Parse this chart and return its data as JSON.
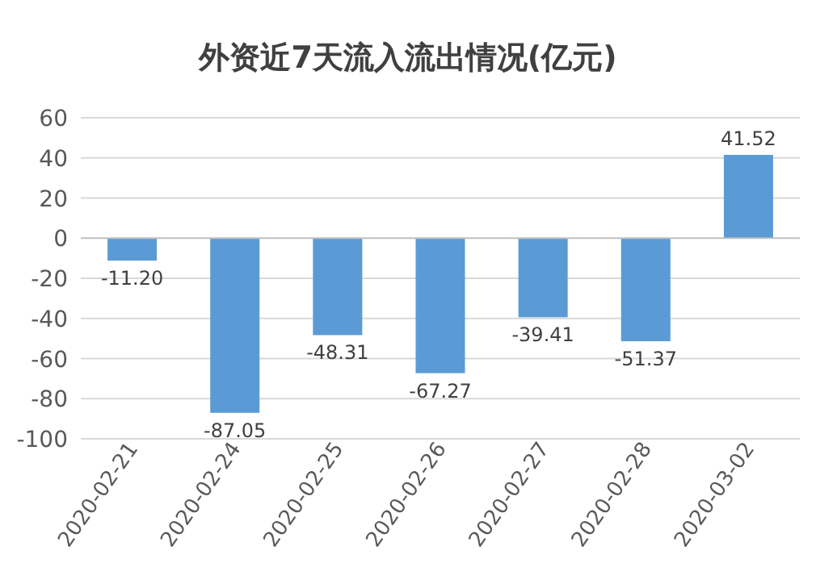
{
  "chart_data": {
    "type": "bar",
    "title": "外资近7天流入流出情况(亿元)",
    "categories": [
      "2020-02-21",
      "2020-02-24",
      "2020-02-25",
      "2020-02-26",
      "2020-02-27",
      "2020-02-28",
      "2020-03-02"
    ],
    "values": [
      -11.2,
      -87.05,
      -48.31,
      -67.27,
      -39.41,
      -51.37,
      41.52
    ],
    "value_labels": [
      "-11.20",
      "-87.05",
      "-48.31",
      "-67.27",
      "-39.41",
      "-51.37",
      "41.52"
    ],
    "color": "#5b9bd5",
    "ylim": [
      -100,
      60
    ],
    "yticks": [
      -100,
      -80,
      -60,
      -40,
      -20,
      0,
      20,
      40,
      60
    ],
    "grid": "y"
  }
}
